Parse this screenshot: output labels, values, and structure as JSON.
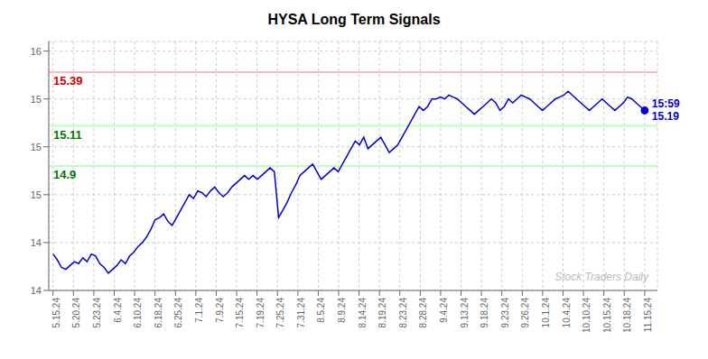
{
  "chart_data": {
    "type": "line",
    "title": "HYSA Long Term Signals",
    "x": [
      0,
      1,
      2,
      3,
      4,
      5,
      6,
      7,
      8,
      9,
      10,
      11,
      12,
      13,
      14,
      15,
      16,
      17,
      18,
      19,
      20,
      21,
      22,
      23,
      24,
      25,
      26,
      27,
      28,
      29,
      30,
      31,
      32,
      33,
      34,
      35,
      36,
      37,
      38,
      39,
      40,
      41,
      42,
      43,
      44,
      45,
      46,
      47,
      48,
      49,
      50,
      51,
      52,
      53,
      54,
      55,
      56,
      57,
      58,
      59,
      60,
      61,
      62,
      63,
      64,
      65,
      66,
      67,
      68,
      69,
      70,
      71,
      72,
      73,
      74,
      75,
      76,
      77,
      78,
      79,
      80,
      81,
      82,
      83,
      84,
      85,
      86,
      87,
      88,
      89,
      90,
      91,
      92,
      93,
      94,
      95,
      96,
      97,
      98,
      99,
      100,
      101,
      102,
      103,
      104,
      105,
      106,
      107,
      108,
      109,
      110,
      111,
      112,
      113,
      114,
      115,
      116,
      117,
      118,
      119,
      120,
      121,
      122,
      123,
      124,
      125,
      126,
      127,
      128,
      129,
      130,
      131,
      132,
      133,
      134,
      135,
      136,
      137,
      138,
      139
    ],
    "series": [
      {
        "color": "#0000cc",
        "values": [
          14.44,
          14.41,
          14.37,
          14.36,
          14.38,
          14.4,
          14.39,
          14.42,
          14.4,
          14.44,
          14.43,
          14.39,
          14.37,
          14.34,
          14.36,
          14.38,
          14.41,
          14.39,
          14.43,
          14.45,
          14.48,
          14.5,
          14.53,
          14.57,
          14.62,
          14.63,
          14.65,
          14.61,
          14.59,
          14.63,
          14.67,
          14.71,
          14.75,
          14.73,
          14.77,
          14.76,
          14.74,
          14.77,
          14.79,
          14.76,
          14.74,
          14.76,
          14.79,
          14.81,
          14.83,
          14.85,
          14.83,
          14.85,
          14.83,
          14.85,
          14.87,
          14.89,
          14.87,
          14.63,
          14.67,
          14.71,
          14.76,
          14.8,
          14.85,
          14.87,
          14.89,
          14.91,
          14.87,
          14.83,
          14.85,
          14.87,
          14.89,
          14.87,
          14.91,
          14.95,
          14.99,
          15.03,
          15.01,
          15.05,
          14.99,
          15.01,
          15.03,
          15.05,
          15.01,
          14.97,
          14.99,
          15.01,
          15.05,
          15.09,
          15.13,
          15.17,
          15.21,
          15.19,
          15.21,
          15.25,
          15.25,
          15.26,
          15.25,
          15.27,
          15.26,
          15.25,
          15.23,
          15.21,
          15.19,
          15.17,
          15.19,
          15.21,
          15.23,
          15.25,
          15.23,
          15.19,
          15.21,
          15.25,
          15.23,
          15.25,
          15.27,
          15.26,
          15.25,
          15.23,
          15.21,
          15.19,
          15.21,
          15.23,
          15.25,
          15.26,
          15.27,
          15.29,
          15.27,
          15.25,
          15.23,
          15.21,
          15.19,
          15.21,
          15.23,
          15.25,
          15.23,
          15.21,
          15.19,
          15.21,
          15.23,
          15.26,
          15.25,
          15.23,
          15.21,
          15.19
        ]
      }
    ],
    "xlim": [
      -1,
      142
    ],
    "xticks": [
      {
        "value": 0,
        "label": "5.15.24"
      },
      {
        "value": 4.793103448275862,
        "label": "5.20.24"
      },
      {
        "value": 9.586206896551724,
        "label": "5.23.24"
      },
      {
        "value": 14.379310344827585,
        "label": "6.4.24"
      },
      {
        "value": 19.17241379310345,
        "label": "6.10.24"
      },
      {
        "value": 23.96551724137931,
        "label": "6.18.24"
      },
      {
        "value": 28.75862068965517,
        "label": "6.25.24"
      },
      {
        "value": 33.55172413793103,
        "label": "7.1.24"
      },
      {
        "value": 38.3448275862069,
        "label": "7.9.24"
      },
      {
        "value": 43.13793103448276,
        "label": "7.15.24"
      },
      {
        "value": 47.93103448275862,
        "label": "7.19.24"
      },
      {
        "value": 52.724137931034484,
        "label": "7.25.24"
      },
      {
        "value": 57.51724137931034,
        "label": "7.31.24"
      },
      {
        "value": 62.310344827586206,
        "label": "8.5.24"
      },
      {
        "value": 67.10344827586206,
        "label": "8.9.24"
      },
      {
        "value": 71.89655172413794,
        "label": "8.14.24"
      },
      {
        "value": 76.6896551724138,
        "label": "8.19.24"
      },
      {
        "value": 81.48275862068965,
        "label": "8.23.24"
      },
      {
        "value": 86.27586206896552,
        "label": "8.28.24"
      },
      {
        "value": 91.06896551724138,
        "label": "9.4.24"
      },
      {
        "value": 95.86206896551724,
        "label": "9.13.24"
      },
      {
        "value": 100.65517241379311,
        "label": "9.18.24"
      },
      {
        "value": 105.44827586206897,
        "label": "9.23.24"
      },
      {
        "value": 110.24137931034483,
        "label": "9.26.24"
      },
      {
        "value": 115.03448275862068,
        "label": "10.1.24"
      },
      {
        "value": 119.82758620689656,
        "label": "10.4.24"
      },
      {
        "value": 124.62068965517241,
        "label": "10.10.24"
      },
      {
        "value": 129.41379310344828,
        "label": "10.15.24"
      },
      {
        "value": 134.20689655172413,
        "label": "10.18.24"
      },
      {
        "value": 139,
        "label": "11.15.24"
      }
    ],
    "ylim": [
      14.25,
      15.55
    ],
    "yticks": [
      {
        "value": 14.25,
        "label": "14"
      },
      {
        "value": 14.5,
        "label": "14"
      },
      {
        "value": 14.75,
        "label": "15"
      },
      15,
      {
        "value": 15.25,
        "label": "15"
      },
      {
        "value": 15.5,
        "label": "16"
      }
    ],
    "grid": true,
    "reference_lines": [
      {
        "y": 15.39,
        "color": "#ffbbbb",
        "label": "15.39",
        "label_color": "#cc0000"
      },
      {
        "y": 15.11,
        "color": "#bbffbb",
        "label": "15.11",
        "label_color": "#007700"
      },
      {
        "y": 14.9,
        "color": "#bbffbb",
        "label": "14.9",
        "label_color": "#007700"
      }
    ],
    "last_point": {
      "color": "#0000cc",
      "labels": [
        "15:59",
        "15.19"
      ]
    },
    "watermark": "Stock Traders Daily"
  }
}
